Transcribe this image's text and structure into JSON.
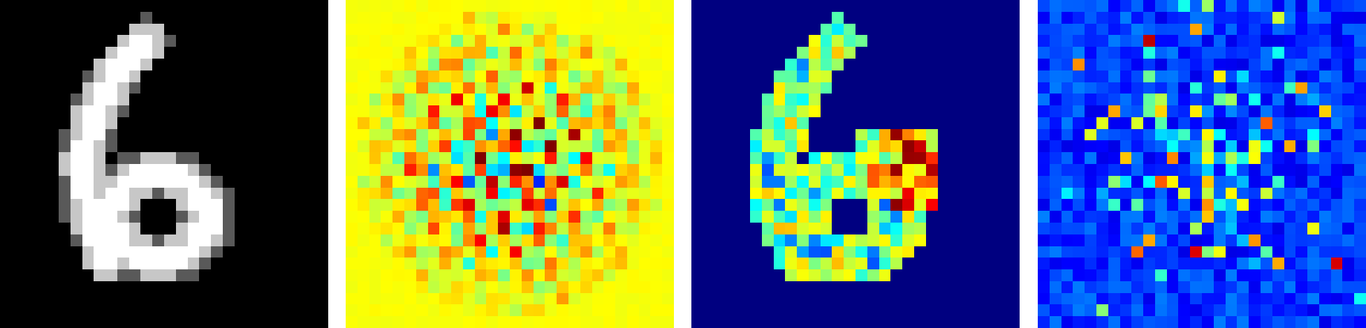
{
  "panels": [
    {
      "id": "digit",
      "colormap": "gray",
      "grid_size": 28,
      "depicts": "6",
      "background_hex": "#000000"
    },
    {
      "id": "weight",
      "colormap": "jet",
      "grid_size": 28,
      "background_hex": "#a0ff5a"
    },
    {
      "id": "saliency",
      "colormap": "jet",
      "grid_size": 28,
      "background_hex": "#00007f"
    },
    {
      "id": "noise",
      "colormap": "jet",
      "grid_size": 28,
      "background_hex": "#00008b"
    }
  ]
}
